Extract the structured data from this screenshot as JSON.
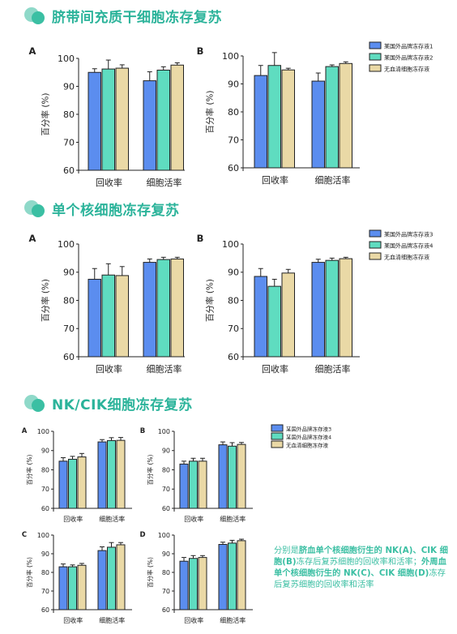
{
  "sections": [
    {
      "title": "脐带间充质干细胞冻存复苏"
    },
    {
      "title": "单个核细胞冻存复苏"
    },
    {
      "title": "NK/CIK细胞冻存复苏"
    }
  ],
  "caption": {
    "p1": "分别是",
    "b1": "脐血单个核细胞衍生的 NK(A)、CIK 细胞(B)",
    "p2": "冻存后复苏细胞的回收率和活率；",
    "b2": "外周血单个核细胞衍生的 NK(C)、CIK 细胞(D)",
    "p3": "冻存后复苏细胞的回收率和活率"
  },
  "colors": {
    "s1": "#5b8def",
    "s2": "#5fdcc0",
    "s3": "#ead9a6",
    "accent": "#2bb39a"
  },
  "chart_data": [
    {
      "panel": "A",
      "group": "section1",
      "type": "bar",
      "ylabel": "百分率 (%)",
      "ylim": [
        60,
        100
      ],
      "yticks": [
        60,
        70,
        80,
        90,
        100
      ],
      "categories": [
        "回收率",
        "细胞活率"
      ],
      "series": [
        {
          "name": "某国外品牌冻存液1",
          "values": [
            95,
            92
          ],
          "errors": [
            1.3,
            3.2
          ]
        },
        {
          "name": "某国外品牌冻存液2",
          "values": [
            96.2,
            95.8
          ],
          "errors": [
            3.2,
            1.2
          ]
        },
        {
          "name": "无血清细胞冻存液",
          "values": [
            96.5,
            97.6
          ],
          "errors": [
            1.2,
            0.8
          ]
        }
      ],
      "legend": "right"
    },
    {
      "panel": "B",
      "group": "section1",
      "type": "bar",
      "ylabel": "百分率 (%)",
      "ylim": [
        60,
        100
      ],
      "yticks": [
        60,
        70,
        80,
        90,
        100
      ],
      "categories": [
        "回收率",
        "细胞活率"
      ],
      "series": [
        {
          "name": "某国外品牌冻存液1",
          "values": [
            93,
            91
          ],
          "errors": [
            3.6,
            2.9
          ]
        },
        {
          "name": "某国外品牌冻存液2",
          "values": [
            96.6,
            96.2
          ],
          "errors": [
            4.6,
            0.6
          ]
        },
        {
          "name": "无血清细胞冻存液",
          "values": [
            95,
            97.3
          ],
          "errors": [
            0.6,
            0.6
          ]
        }
      ]
    },
    {
      "panel": "A",
      "group": "section2",
      "type": "bar",
      "ylabel": "百分率 (%)",
      "ylim": [
        60,
        100
      ],
      "yticks": [
        60,
        70,
        80,
        90,
        100
      ],
      "categories": [
        "回收率",
        "细胞活率"
      ],
      "series": [
        {
          "name": "某国外品牌冻存液3",
          "values": [
            87.5,
            93.5
          ],
          "errors": [
            3.8,
            1.2
          ]
        },
        {
          "name": "某国外品牌冻存液4",
          "values": [
            89,
            94.5
          ],
          "errors": [
            4,
            0.8
          ]
        },
        {
          "name": "无血清细胞冻存液",
          "values": [
            88.8,
            94.7
          ],
          "errors": [
            3.2,
            0.6
          ]
        }
      ],
      "legend": "right"
    },
    {
      "panel": "B",
      "group": "section2",
      "type": "bar",
      "ylabel": "百分率 (%)",
      "ylim": [
        60,
        100
      ],
      "yticks": [
        60,
        70,
        80,
        90,
        100
      ],
      "categories": [
        "回收率",
        "细胞活率"
      ],
      "series": [
        {
          "name": "某国外品牌冻存液3",
          "values": [
            88.5,
            93.5
          ],
          "errors": [
            2.8,
            1.1
          ]
        },
        {
          "name": "某国外品牌冻存液4",
          "values": [
            85,
            94.2
          ],
          "errors": [
            2.5,
            0.8
          ]
        },
        {
          "name": "无血清细胞冻存液",
          "values": [
            89.7,
            94.8
          ],
          "errors": [
            1.3,
            0.5
          ]
        }
      ]
    },
    {
      "panel": "A",
      "group": "section3",
      "type": "bar",
      "ylabel": "百分率 (%)",
      "ylim": [
        60,
        100
      ],
      "yticks": [
        60,
        70,
        80,
        90,
        100
      ],
      "categories": [
        "回收率",
        "细胞活率"
      ],
      "series": [
        {
          "name": "某国外品牌冻存液3",
          "values": [
            84.5,
            94.5
          ],
          "errors": [
            1.8,
            1.2
          ]
        },
        {
          "name": "某国外品牌冻存液4",
          "values": [
            85.5,
            95.2
          ],
          "errors": [
            1.5,
            1.5
          ]
        },
        {
          "name": "无血清细胞冻存液",
          "values": [
            86.7,
            95.3
          ],
          "errors": [
            1.8,
            1.5
          ]
        }
      ],
      "legend": "right"
    },
    {
      "panel": "B",
      "group": "section3",
      "type": "bar",
      "ylabel": "百分率 (%)",
      "ylim": [
        60,
        100
      ],
      "yticks": [
        60,
        70,
        80,
        90,
        100
      ],
      "categories": [
        "回收率",
        "细胞活率"
      ],
      "series": [
        {
          "name": "某国外品牌冻存液3",
          "values": [
            83,
            93
          ],
          "errors": [
            1.5,
            1.5
          ]
        },
        {
          "name": "某国外品牌冻存液4",
          "values": [
            84.5,
            92.3
          ],
          "errors": [
            1.5,
            1.8
          ]
        },
        {
          "name": "无血清细胞冻存液",
          "values": [
            84.5,
            93.2
          ],
          "errors": [
            1.5,
            1
          ]
        }
      ]
    },
    {
      "panel": "C",
      "group": "section3",
      "type": "bar",
      "ylabel": "百分率 (%)",
      "ylim": [
        60,
        100
      ],
      "yticks": [
        60,
        70,
        80,
        90,
        100
      ],
      "categories": [
        "回收率",
        "细胞活率"
      ],
      "series": [
        {
          "name": "某国外品牌冻存液3",
          "values": [
            83,
            91.7
          ],
          "errors": [
            1.5,
            2
          ]
        },
        {
          "name": "某国外品牌冻存液4",
          "values": [
            83,
            93.5
          ],
          "errors": [
            1,
            2.5
          ]
        },
        {
          "name": "无血清细胞冻存液",
          "values": [
            83.8,
            94.8
          ],
          "errors": [
            1,
            1.2
          ]
        }
      ]
    },
    {
      "panel": "D",
      "group": "section3",
      "type": "bar",
      "ylabel": "百分率 (%)",
      "ylim": [
        60,
        100
      ],
      "yticks": [
        60,
        70,
        80,
        90,
        100
      ],
      "categories": [
        "回收率",
        "细胞活率"
      ],
      "series": [
        {
          "name": "某国外品牌冻存液3",
          "values": [
            86,
            95
          ],
          "errors": [
            2,
            1.2
          ]
        },
        {
          "name": "某国外品牌冻存液4",
          "values": [
            87.5,
            95.7
          ],
          "errors": [
            1.5,
            1.5
          ]
        },
        {
          "name": "无血清细胞冻存液",
          "values": [
            88,
            97
          ],
          "errors": [
            1,
            0.8
          ]
        }
      ]
    }
  ]
}
